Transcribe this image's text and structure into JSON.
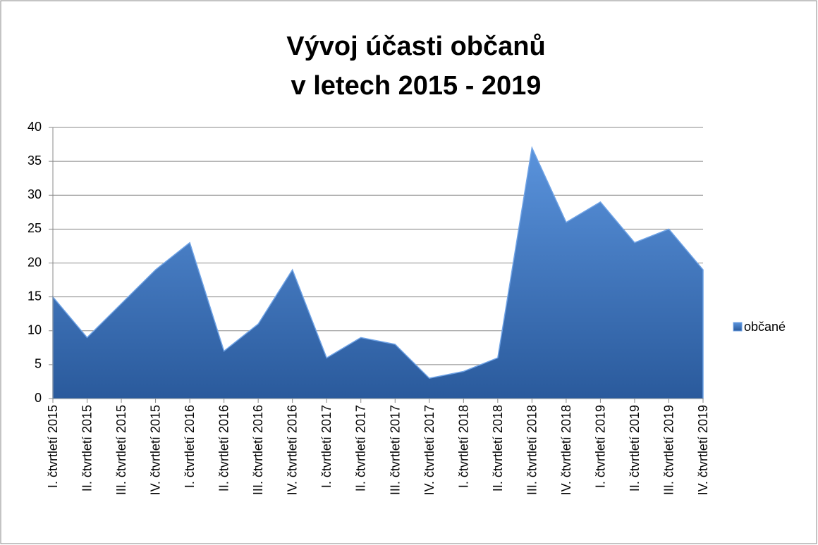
{
  "chart_data": {
    "type": "area",
    "title": [
      "Vývoj účasti občanů",
      "v letech 2015 - 2019"
    ],
    "categories": [
      "I. čtvrtletí 2015",
      "II. čtvrtletí 2015",
      "III. čtvrtletí 2015",
      "IV. čtvrtletí 2015",
      "I. čtvrtletí 2016",
      "II. čtvrtletí 2016",
      "III. čtvrtletí 2016",
      "IV. čtvrtletí 2016",
      "I. čtvrtletí 2017",
      "II. čtvrtletí 2017",
      "III. čtvrtletí 2017",
      "IV. čtvrtletí 2017",
      "I. čtvrtletí 2018",
      "II. čtvrtletí 2018",
      "III. čtvrtletí 2018",
      "IV. čtvrtletí 2018",
      "I. čtvrtletí 2019",
      "II. čtvrtletí 2019",
      "III. čtvrtletí 2019",
      "IV. čtvrtletí 2019"
    ],
    "series": [
      {
        "name": "občané",
        "color": "#3d73b8",
        "values": [
          15,
          9,
          14,
          19,
          23,
          7,
          11,
          19,
          6,
          9,
          8,
          3,
          4,
          6,
          37,
          26,
          29,
          23,
          25,
          19
        ]
      }
    ],
    "ylim": [
      0,
      40
    ],
    "yticks": [
      0,
      5,
      10,
      15,
      20,
      25,
      30,
      35,
      40
    ],
    "grid": true,
    "legend": "right"
  }
}
